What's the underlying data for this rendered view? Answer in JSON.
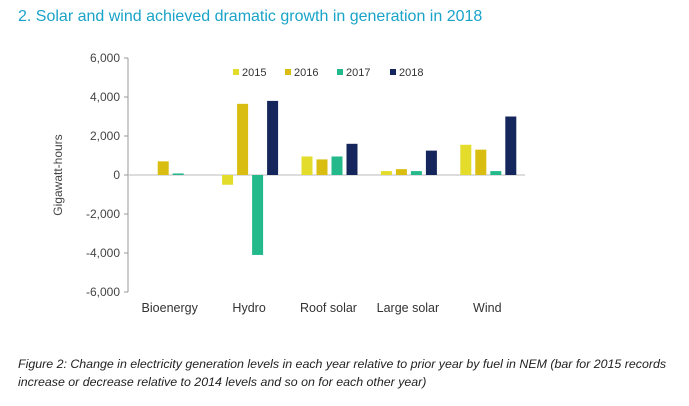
{
  "heading": "2. Solar and wind achieved dramatic growth in generation in 2018",
  "caption": "Figure 2: Change in electricity generation levels in each year relative to prior year by fuel in NEM (bar for 2015 records increase or decrease relative to 2014 levels and so on for each other year)",
  "chart_data": {
    "type": "bar",
    "title": "",
    "xlabel": "",
    "ylabel": "Gigawatt-hours",
    "ylim": [
      -6000,
      6000
    ],
    "yticks": [
      6000,
      4000,
      2000,
      0,
      -2000,
      -4000,
      -6000
    ],
    "ytick_labels": [
      "6,000",
      "4,000",
      "2,000",
      "0",
      "-2,000",
      "-4,000",
      "-6,000"
    ],
    "grid": false,
    "legend_position": "top-right",
    "categories": [
      "Bioenergy",
      "Hydro",
      "Roof solar",
      "Large solar",
      "Wind"
    ],
    "series": [
      {
        "name": "2015",
        "color": "#e3dc2a",
        "values": [
          0,
          -500,
          950,
          200,
          1550
        ]
      },
      {
        "name": "2016",
        "color": "#d9bd10",
        "values": [
          700,
          3650,
          800,
          300,
          1300
        ]
      },
      {
        "name": "2017",
        "color": "#23b98a",
        "values": [
          80,
          -4100,
          950,
          200,
          200
        ]
      },
      {
        "name": "2018",
        "color": "#14265c",
        "values": [
          0,
          3800,
          1600,
          1250,
          3000
        ]
      }
    ]
  }
}
